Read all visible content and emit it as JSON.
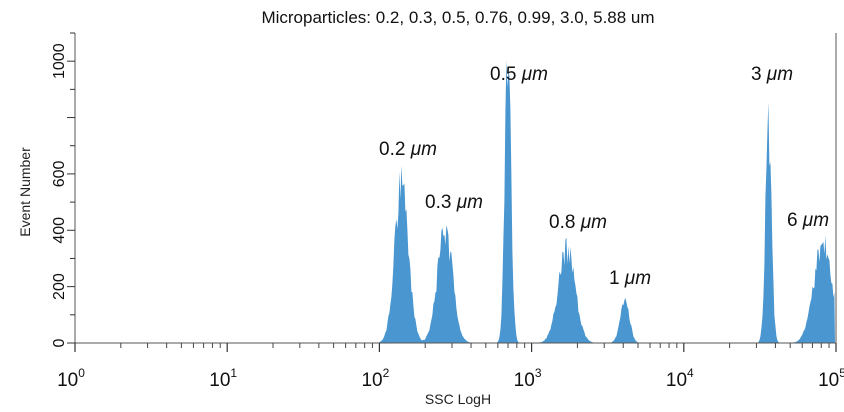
{
  "chart_data": {
    "type": "area",
    "title": "Microparticles: 0.2, 0.3, 0.5, 0.76, 0.99, 3.0, 5.88 um",
    "xlabel": "SSC LogH",
    "ylabel": "Event Number",
    "x_scale": "log",
    "xlim": [
      1,
      100000
    ],
    "ylim": [
      0,
      1100
    ],
    "x_ticks": [
      {
        "base": "10",
        "exp": "0"
      },
      {
        "base": "10",
        "exp": "1"
      },
      {
        "base": "10",
        "exp": "2"
      },
      {
        "base": "10",
        "exp": "3"
      },
      {
        "base": "10",
        "exp": "4"
      },
      {
        "base": "10",
        "exp": "5"
      }
    ],
    "y_ticks": [
      "0",
      "200",
      "400",
      "600",
      "1000"
    ],
    "y_tick_values": [
      0,
      200,
      400,
      600,
      1000
    ],
    "grid": false,
    "color": "#4a96d0",
    "peaks": [
      {
        "label_num": "0.2",
        "label_unit": "μm",
        "x": 140,
        "height": 560
      },
      {
        "label_num": "0.3",
        "label_unit": "μm",
        "x": 270,
        "height": 400
      },
      {
        "label_num": "0.5",
        "label_unit": "μm",
        "x": 700,
        "height": 1050
      },
      {
        "label_num": "0.8",
        "label_unit": "μm",
        "x": 1700,
        "height": 330
      },
      {
        "label_num": "1",
        "label_unit": "μm",
        "x": 4100,
        "height": 150
      },
      {
        "label_num": "3",
        "label_unit": "μm",
        "x": 36000,
        "height": 760
      },
      {
        "label_num": "6",
        "label_unit": "μm",
        "x": 82000,
        "height": 350
      }
    ]
  }
}
